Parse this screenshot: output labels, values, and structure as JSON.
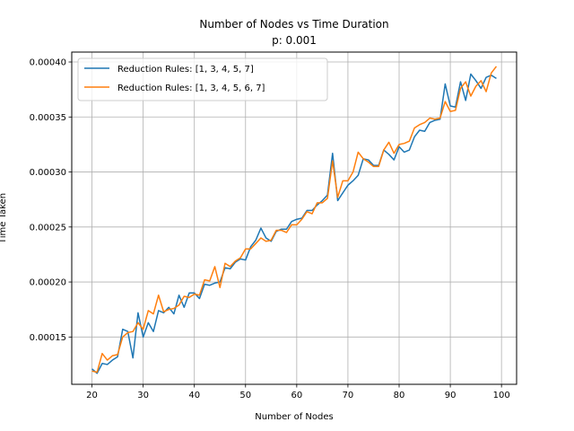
{
  "chart_data": {
    "type": "line",
    "title": "Number of Nodes vs Time Duration",
    "subtitle": "p: 0.001",
    "xlabel": "Number of Nodes",
    "ylabel": "Time Taken",
    "xlim": [
      16.05,
      102.95
    ],
    "ylim": [
      0.000107,
      0.000409
    ],
    "xticks": [
      20,
      30,
      40,
      50,
      60,
      70,
      80,
      90,
      100
    ],
    "yticks": [
      0.00015,
      0.0002,
      0.00025,
      0.0003,
      0.00035,
      0.0004
    ],
    "ytick_labels": [
      "0.00015",
      "0.00020",
      "0.00025",
      "0.00030",
      "0.00035",
      "0.00040"
    ],
    "grid": true,
    "legend_position": "upper-left",
    "x": [
      20,
      21,
      22,
      23,
      24,
      25,
      26,
      27,
      28,
      29,
      30,
      31,
      32,
      33,
      34,
      35,
      36,
      37,
      38,
      39,
      40,
      41,
      42,
      43,
      44,
      45,
      46,
      47,
      48,
      49,
      50,
      51,
      52,
      53,
      54,
      55,
      56,
      57,
      58,
      59,
      60,
      61,
      62,
      63,
      64,
      65,
      66,
      67,
      68,
      69,
      70,
      71,
      72,
      73,
      74,
      75,
      76,
      77,
      78,
      79,
      80,
      81,
      82,
      83,
      84,
      85,
      86,
      87,
      88,
      89,
      90,
      91,
      92,
      93,
      94,
      95,
      96,
      97,
      98,
      99
    ],
    "series": [
      {
        "name": "Reduction Rules: [1, 3, 4, 5, 7]",
        "color": "#1f77b4",
        "values": [
          0.000121,
          0.000117,
          0.000126,
          0.000125,
          0.000129,
          0.000132,
          0.000157,
          0.000155,
          0.000131,
          0.000172,
          0.00015,
          0.000163,
          0.000155,
          0.000174,
          0.000172,
          0.000177,
          0.000171,
          0.000188,
          0.000177,
          0.00019,
          0.00019,
          0.000185,
          0.000198,
          0.000197,
          0.000199,
          0.0002,
          0.000213,
          0.000212,
          0.000218,
          0.000221,
          0.00022,
          0.000232,
          0.000238,
          0.000249,
          0.00024,
          0.000237,
          0.000246,
          0.000248,
          0.000248,
          0.000255,
          0.000257,
          0.000258,
          0.000265,
          0.000265,
          0.00027,
          0.000274,
          0.000279,
          0.000317,
          0.000274,
          0.000281,
          0.000288,
          0.000292,
          0.000297,
          0.000312,
          0.000311,
          0.000306,
          0.000306,
          0.00032,
          0.000316,
          0.000311,
          0.000323,
          0.000318,
          0.00032,
          0.000332,
          0.000338,
          0.000337,
          0.000345,
          0.000347,
          0.000348,
          0.00038,
          0.00036,
          0.000359,
          0.000382,
          0.000365,
          0.000389,
          0.000383,
          0.000376,
          0.000386,
          0.000388,
          0.000385
        ]
      },
      {
        "name": "Reduction Rules: [1, 3, 4, 5, 6, 7]",
        "color": "#ff7f0e",
        "values": [
          0.000119,
          0.000118,
          0.000135,
          0.000129,
          0.000133,
          0.000134,
          0.00015,
          0.000154,
          0.000155,
          0.000163,
          0.000157,
          0.000174,
          0.000171,
          0.000188,
          0.000173,
          0.000175,
          0.000176,
          0.000179,
          0.000187,
          0.000186,
          0.000189,
          0.000188,
          0.000202,
          0.000201,
          0.000214,
          0.000195,
          0.000217,
          0.000214,
          0.000219,
          0.000222,
          0.00023,
          0.00023,
          0.000235,
          0.00024,
          0.000237,
          0.000238,
          0.000247,
          0.000247,
          0.000245,
          0.000252,
          0.000252,
          0.000257,
          0.000264,
          0.000262,
          0.000272,
          0.000272,
          0.000276,
          0.00031,
          0.000277,
          0.000292,
          0.000292,
          0.0003,
          0.000318,
          0.000312,
          0.000309,
          0.000305,
          0.000305,
          0.00032,
          0.000327,
          0.000317,
          0.000325,
          0.000326,
          0.000328,
          0.00034,
          0.000343,
          0.000345,
          0.000349,
          0.000348,
          0.000349,
          0.000364,
          0.000355,
          0.000356,
          0.000376,
          0.000382,
          0.000369,
          0.000378,
          0.000383,
          0.000373,
          0.00039,
          0.000396
        ]
      }
    ]
  }
}
